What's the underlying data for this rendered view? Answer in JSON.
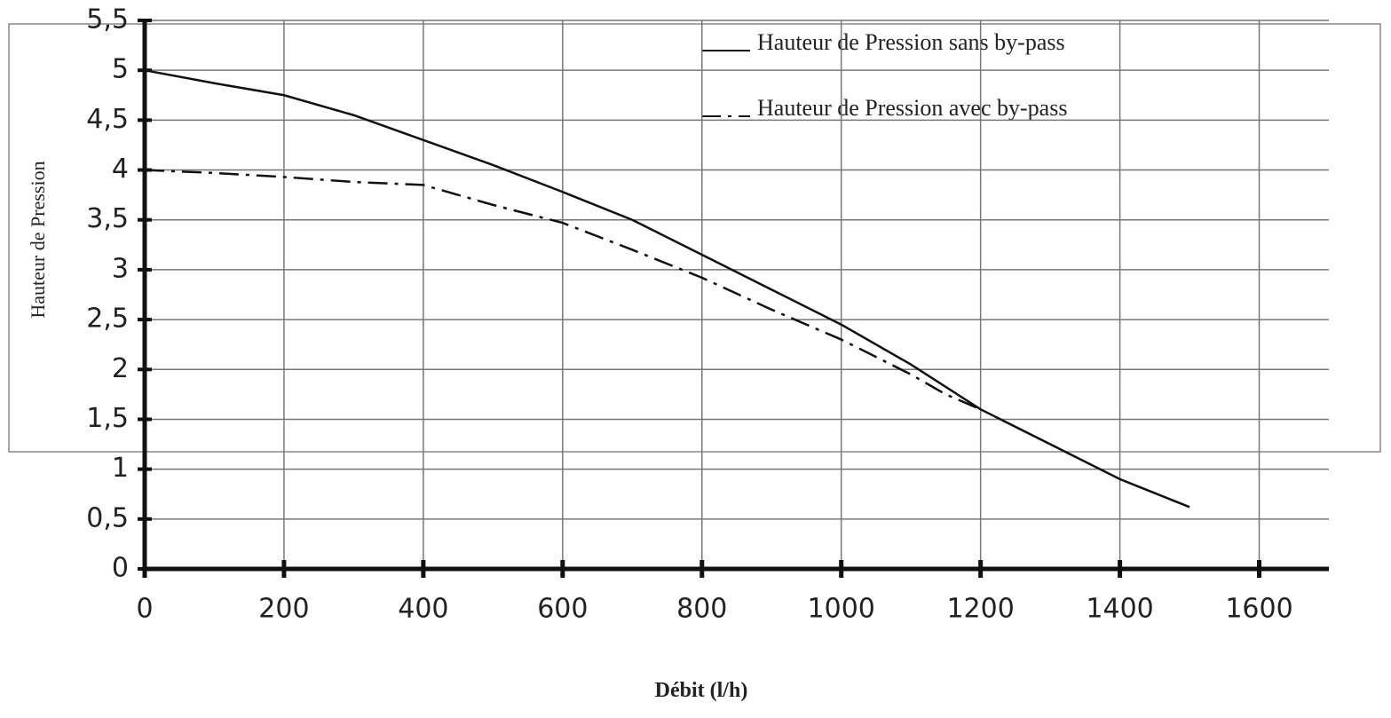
{
  "chart_data": {
    "type": "line",
    "x_label": "Débit (l/h)",
    "y_label": "Hauteur de Pression",
    "xlim": [
      0,
      1700
    ],
    "xticks": [
      0,
      200,
      400,
      600,
      800,
      1000,
      1200,
      1400,
      1600
    ],
    "ylim": [
      0,
      5.5
    ],
    "yticks": [
      0,
      {
        "value": 0.5,
        "label": "0,5"
      },
      1,
      {
        "value": 1.5,
        "label": "1,5"
      },
      2,
      {
        "value": 2.5,
        "label": "2,5"
      },
      3,
      {
        "value": 3.5,
        "label": "3,5"
      },
      4,
      {
        "value": 4.5,
        "label": "4,5"
      },
      5,
      {
        "value": 5.5,
        "label": "5,5"
      }
    ],
    "grid": true,
    "legend": "top-right",
    "series": [
      {
        "name": "Hauteur de Pression sans by-pass",
        "color": "#111111",
        "linestyle": "solid",
        "x": [
          0,
          100,
          200,
          300,
          400,
          500,
          600,
          700,
          800,
          900,
          1000,
          1100,
          1200,
          1300,
          1400,
          1500
        ],
        "values": [
          5.0,
          4.87,
          4.75,
          4.55,
          4.3,
          4.05,
          3.78,
          3.5,
          3.15,
          2.8,
          2.45,
          2.05,
          1.6,
          1.25,
          0.9,
          0.62
        ]
      },
      {
        "name": "Hauteur de Pression avec by-pass",
        "color": "#111111",
        "linestyle": "dashdot",
        "x": [
          0,
          100,
          200,
          300,
          400,
          500,
          600,
          700,
          800,
          900,
          1000,
          1100,
          1150,
          1200
        ],
        "values": [
          4.0,
          3.97,
          3.93,
          3.88,
          3.85,
          3.65,
          3.47,
          3.2,
          2.92,
          2.6,
          2.3,
          1.95,
          1.75,
          1.6
        ]
      }
    ]
  }
}
